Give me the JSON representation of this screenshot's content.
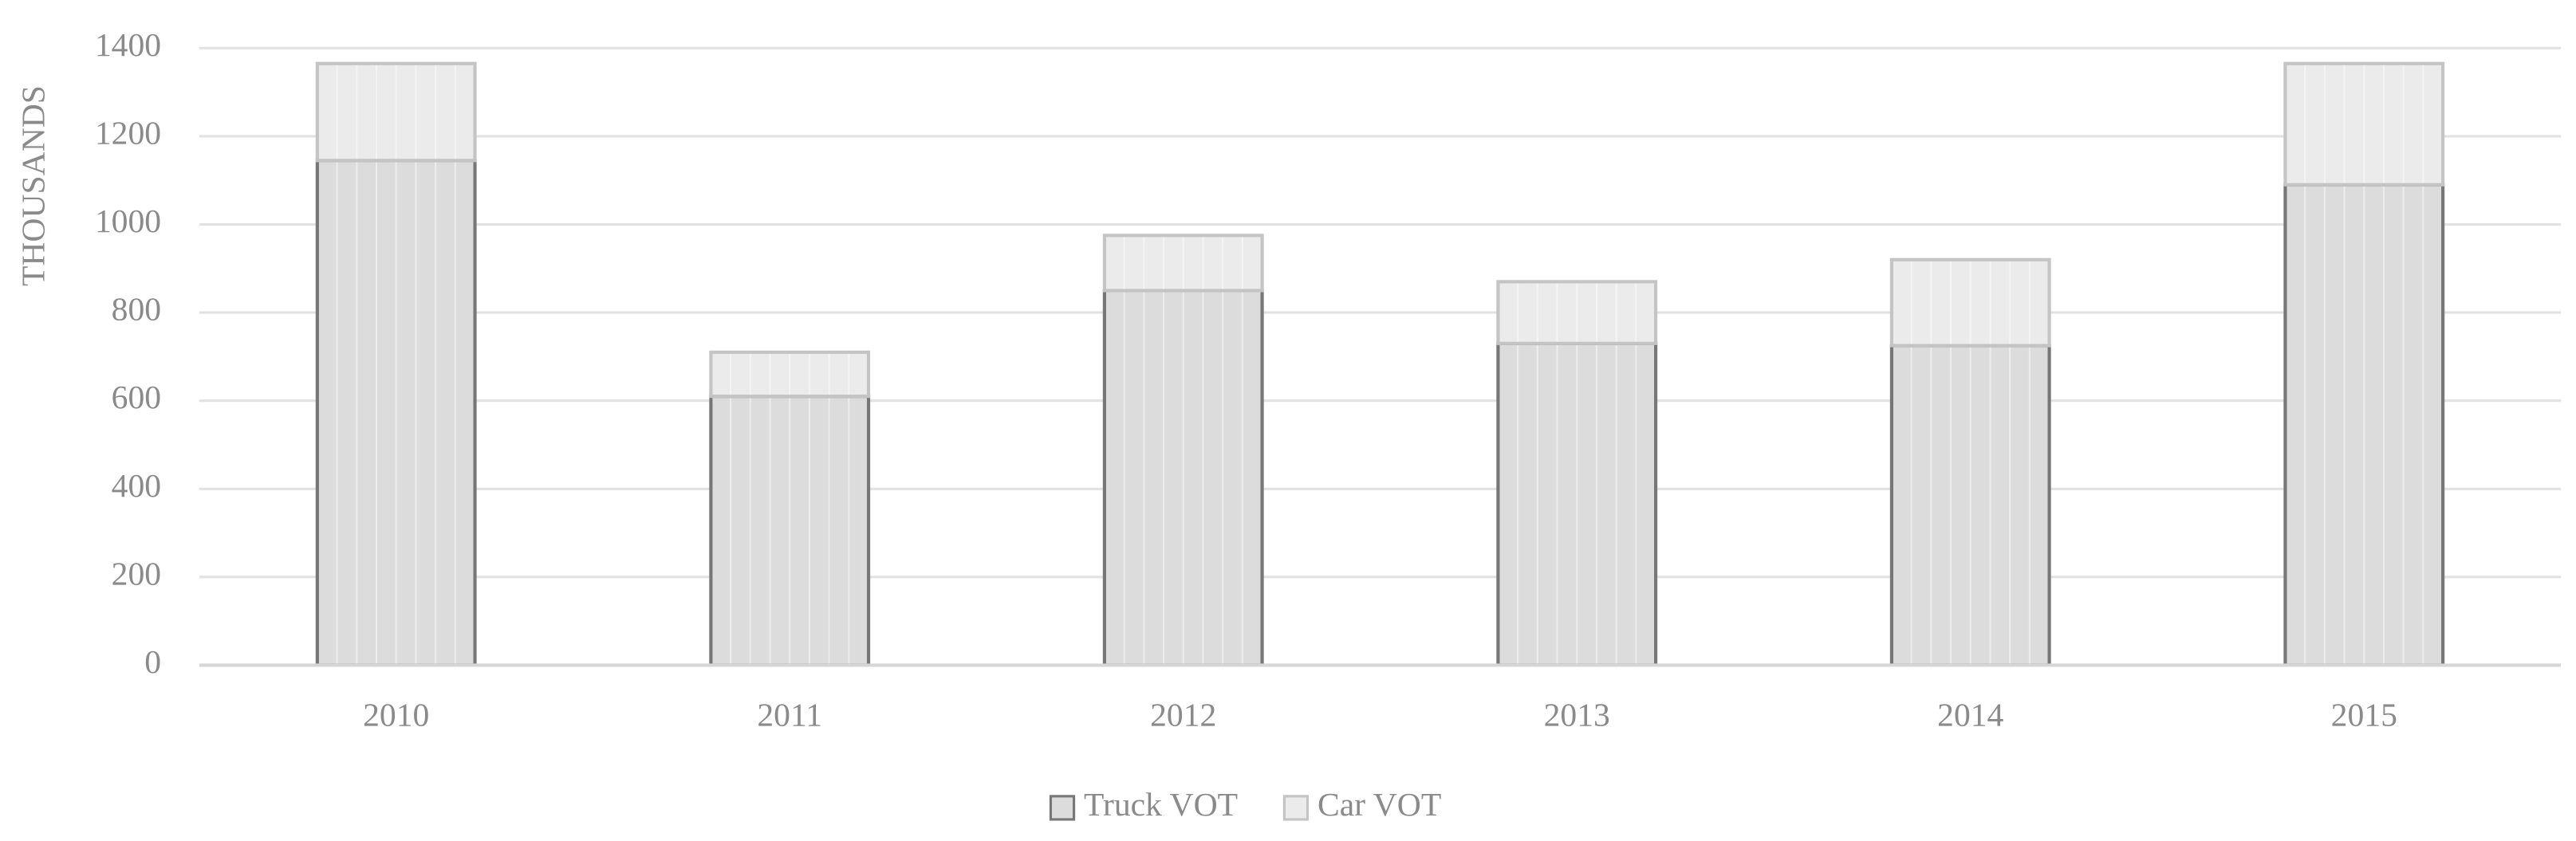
{
  "chart_data": {
    "type": "stacked-bar",
    "y_label": "THOUSANDS",
    "categories": [
      "2010",
      "2011",
      "2012",
      "2013",
      "2014",
      "2015"
    ],
    "series": [
      {
        "name": "Truck VOT",
        "color": "#dcdcdc",
        "values": [
          1145,
          610,
          850,
          730,
          725,
          1090
        ]
      },
      {
        "name": "Car VOT",
        "color": "#ebebeb",
        "values": [
          220,
          100,
          125,
          140,
          195,
          275
        ]
      }
    ],
    "ylim": [
      0,
      1400
    ],
    "yticks": [
      0,
      200,
      400,
      600,
      800,
      1000,
      1200,
      1400
    ],
    "grid": true,
    "legend": "bottom"
  }
}
